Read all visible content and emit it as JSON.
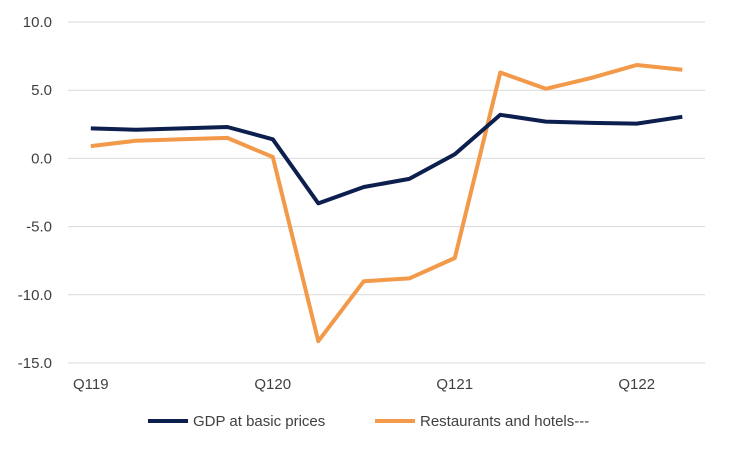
{
  "chart_data": {
    "type": "line",
    "title": "",
    "xlabel": "",
    "ylabel": "",
    "x_tick_labels": [
      "Q119",
      "Q120",
      "Q121",
      "Q122"
    ],
    "x_tick_positions": [
      0,
      4,
      8,
      12
    ],
    "y_ticks": [
      10.0,
      5.0,
      0.0,
      -5.0,
      -10.0,
      -15.0
    ],
    "y_tick_labels": [
      "10.0",
      "5.0",
      "0.0",
      "-5.0",
      "-10.0",
      "-15.0"
    ],
    "ylim": [
      -15,
      10
    ],
    "grid": "horizontal",
    "legend_position": "bottom",
    "series": [
      {
        "name": "GDP at basic prices",
        "color": "#0d1f4f",
        "values": [
          2.2,
          2.1,
          2.2,
          2.3,
          1.4,
          -3.3,
          -2.1,
          -1.5,
          0.3,
          3.2,
          2.7,
          2.6,
          2.55,
          3.05
        ]
      },
      {
        "name": "Restaurants and hotels---",
        "color": "#f2994a",
        "values": [
          0.9,
          1.3,
          1.4,
          1.5,
          0.1,
          -13.4,
          -9.0,
          -8.8,
          -7.3,
          6.3,
          5.1,
          5.9,
          6.85,
          6.5
        ]
      }
    ]
  }
}
